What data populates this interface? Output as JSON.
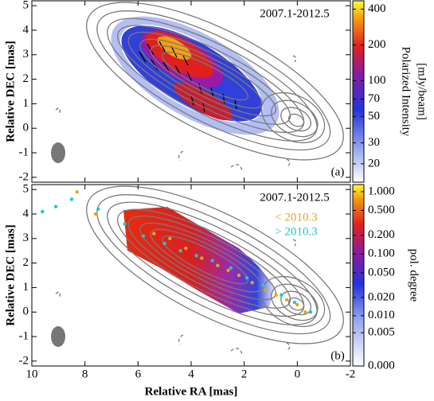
{
  "chart_data": [
    {
      "type": "scatter",
      "title": "2007.1-2012.5",
      "annotation": "(a)",
      "ylabel": "Relative DEC [mas]",
      "xlim": [
        10,
        -2
      ],
      "xticks": [
        10,
        8,
        6,
        4,
        2,
        0,
        -2
      ],
      "ylim": [
        -2.2,
        5.2
      ],
      "yticks": [
        -2,
        -1,
        0,
        1,
        2,
        3,
        4,
        5
      ],
      "colorbar": {
        "label": [
          "Polarized Intensity",
          "[mJy/beam]"
        ],
        "scale": "log",
        "clim": [
          14,
          470
        ],
        "ticks": [
          20,
          30,
          50,
          70,
          100,
          200,
          400
        ]
      }
    },
    {
      "type": "scatter",
      "title": "2007.1-2012.5",
      "annotation": "(b)",
      "ylabel": "Relative DEC [mas]",
      "xlabel": "Relative RA [mas]",
      "xlim": [
        10,
        -2
      ],
      "xticks": [
        10,
        8,
        6,
        4,
        2,
        0,
        -2
      ],
      "ylim": [
        -2.2,
        5.2
      ],
      "yticks": [
        -2,
        -1,
        0,
        1,
        2,
        3,
        4,
        5
      ],
      "legend": "upper right",
      "series": [
        {
          "name": "< 2010.3",
          "color": "#e8a21f",
          "x": [
            8.3,
            7.6,
            5.4,
            4.8,
            4.2,
            3.6,
            3.0,
            2.6,
            2.2,
            1.7,
            1.2,
            0.8,
            0.4,
            0.0,
            -0.3
          ],
          "y": [
            4.9,
            4.0,
            3.2,
            3.0,
            2.6,
            2.2,
            1.9,
            1.7,
            1.5,
            1.2,
            0.9,
            0.7,
            0.5,
            0.3,
            0.0
          ]
        },
        {
          "name": "> 2010.3",
          "color": "#1ec8c8",
          "x": [
            9.6,
            9.1,
            8.5,
            7.5,
            6.5,
            5.8,
            5.0,
            4.4,
            3.8,
            3.2,
            2.5,
            1.9,
            1.3,
            0.6,
            0.1,
            -0.5
          ],
          "y": [
            4.1,
            4.3,
            4.6,
            4.2,
            3.6,
            3.1,
            2.8,
            2.5,
            2.3,
            2.1,
            1.8,
            1.4,
            1.1,
            0.7,
            0.4,
            0.0
          ]
        }
      ],
      "colorbar": {
        "label": [
          "pol. degree"
        ],
        "scale": "asinh",
        "asinh_a": 0.0032,
        "clim": [
          0,
          1.3
        ],
        "ticks": [
          {
            "value": 1,
            "label": "1.000"
          },
          {
            "value": 0.5,
            "label": "0.500"
          },
          {
            "value": 0.2,
            "label": "0.200"
          },
          {
            "value": 0.1,
            "label": "0.100"
          },
          {
            "value": 0.05,
            "label": "0.050"
          },
          {
            "value": 0.02,
            "label": "0.020"
          },
          {
            "value": 0.01,
            "label": "0.010"
          },
          {
            "value": 0.005,
            "label": "0.005"
          },
          {
            "value": 0,
            "label": "0.000"
          }
        ]
      }
    }
  ]
}
